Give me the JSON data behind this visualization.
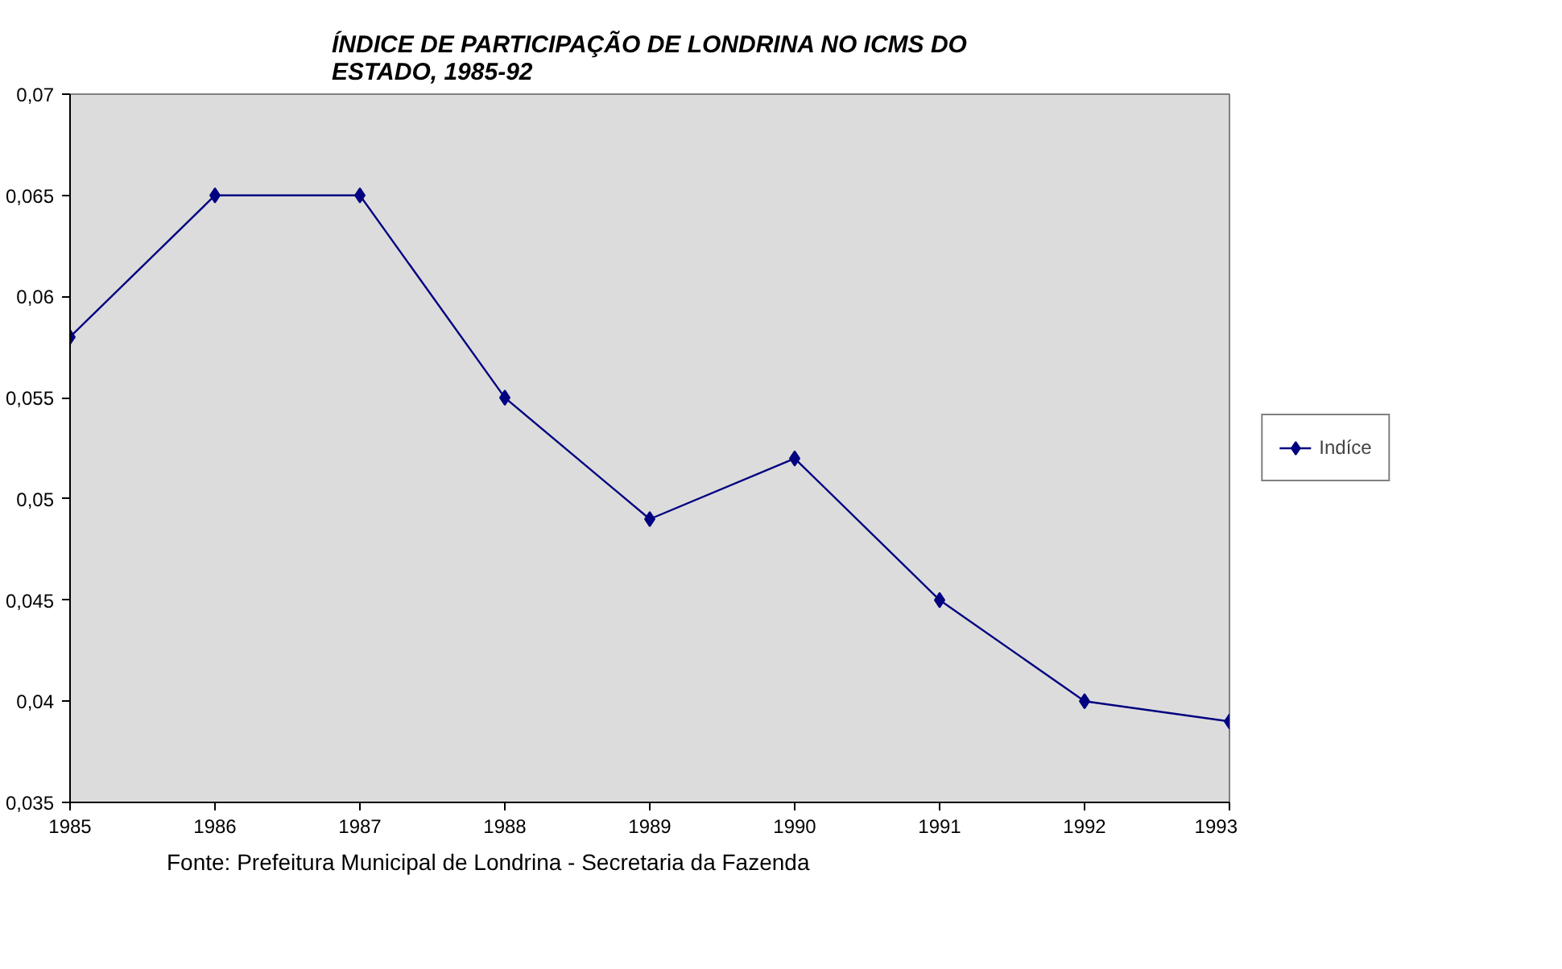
{
  "chart_data": {
    "type": "line",
    "title": "ÍNDICE DE PARTICIPAÇÃO DE LONDRINA NO ICMS DO ESTADO, 1985-92",
    "x": [
      1985,
      1986,
      1987,
      1988,
      1989,
      1990,
      1991,
      1992,
      1993
    ],
    "series": [
      {
        "name": "Indíce",
        "color": "#000080",
        "values": [
          0.058,
          0.065,
          0.065,
          0.055,
          0.049,
          0.052,
          0.045,
          0.04,
          0.039
        ]
      }
    ],
    "xlim": [
      1985,
      1993
    ],
    "xticks": [
      1985,
      1986,
      1987,
      1988,
      1989,
      1990,
      1991,
      1992,
      1993
    ],
    "ylim": [
      0.035,
      0.07
    ],
    "yticks": [
      {
        "value": 0.035,
        "label": "0,035"
      },
      {
        "value": 0.04,
        "label": "0,04"
      },
      {
        "value": 0.045,
        "label": "0,045"
      },
      {
        "value": 0.05,
        "label": "0,05"
      },
      {
        "value": 0.055,
        "label": "0,055"
      },
      {
        "value": 0.06,
        "label": "0,06"
      },
      {
        "value": 0.065,
        "label": "0,065"
      },
      {
        "value": 0.07,
        "label": "0,07"
      }
    ],
    "annotations": [
      "Fonte: Prefeitura Municipal de Londrina - Secretaria da Fazenda"
    ],
    "grid": false,
    "legend": "right",
    "marker": "diamond",
    "line_style": "solid"
  }
}
